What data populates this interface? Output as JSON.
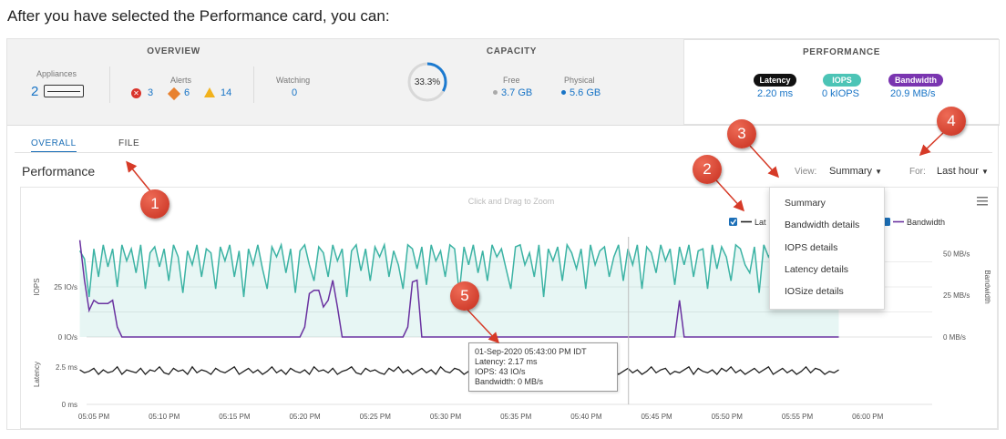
{
  "intro": "After you have selected the Performance card, you can:",
  "overview": {
    "title": "OVERVIEW",
    "appliances_label": "Appliances",
    "appliances_count": "2",
    "alerts_label": "Alerts",
    "alerts_critical": "3",
    "alerts_major": "6",
    "alerts_minor": "14",
    "watching_label": "Watching",
    "watching_count": "0"
  },
  "capacity": {
    "title": "CAPACITY",
    "percent": "33.3%",
    "percent_value": 0.333,
    "free_label": "Free",
    "free_value": "3.7 GB",
    "physical_label": "Physical",
    "physical_value": "5.6 GB"
  },
  "performance_card": {
    "title": "PERFORMANCE",
    "latency_label": "Latency",
    "latency_value": "2.20 ms",
    "iops_label": "IOPS",
    "iops_value": "0 kIOPS",
    "bandwidth_label": "Bandwidth",
    "bandwidth_value": "20.9 MB/s"
  },
  "tabs": [
    "OVERALL",
    "FILE"
  ],
  "page_title": "Performance",
  "view_label": "View:",
  "view_value": "Summary",
  "for_label": "For:",
  "for_value": "Last hour",
  "view_menu": [
    "Summary",
    "Bandwidth details",
    "IOPS details",
    "Latency details",
    "IOSize details"
  ],
  "chart_hint": "Click and Drag to Zoom",
  "legend": {
    "latency": "Lat",
    "bandwidth": "Bandwidth"
  },
  "tooltip": {
    "time": "01-Sep-2020 05:43:00 PM IDT",
    "latency": "Latency: 2.17 ms",
    "iops": "IOPS: 43 IO/s",
    "bandwidth": "Bandwidth: 0 MB/s"
  },
  "callouts": [
    "1",
    "2",
    "3",
    "4",
    "5"
  ],
  "colors": {
    "iops": "#3cb3a4",
    "bandwidth": "#6a32a0",
    "latency": "#222222",
    "accent": "#1c6fb7",
    "callout": "#d63a27"
  },
  "chart_data": {
    "type": "line",
    "x_ticks": [
      "05:05 PM",
      "05:10 PM",
      "05:15 PM",
      "05:20 PM",
      "05:25 PM",
      "05:30 PM",
      "05:35 PM",
      "05:40 PM",
      "05:45 PM",
      "05:50 PM",
      "05:55 PM",
      "06:00 PM"
    ],
    "iops_axis": {
      "label": "IOPS",
      "ticks": [
        "25 IO/s",
        "0 IO/s"
      ],
      "ylim": [
        0,
        50
      ]
    },
    "bandwidth_axis": {
      "label": "Bandwidth",
      "ticks": [
        "50 MB/s",
        "25 MB/s",
        "0 MB/s"
      ],
      "ylim": [
        0,
        60
      ]
    },
    "latency_axis": {
      "label": "Latency",
      "ticks": [
        "2.5 ms",
        "0 ms"
      ],
      "ylim": [
        0,
        4
      ]
    },
    "x_start_minute": 64,
    "x_step_minutes": 0.333,
    "series": [
      {
        "name": "IOPS",
        "values": [
          43,
          39,
          20,
          44,
          30,
          46,
          35,
          44,
          25,
          46,
          38,
          44,
          32,
          46,
          24,
          42,
          45,
          35,
          44,
          28,
          46,
          40,
          22,
          43,
          36,
          46,
          30,
          44,
          42,
          24,
          45,
          38,
          46,
          30,
          43,
          20,
          44,
          36,
          46,
          34,
          24,
          45,
          40,
          46,
          32,
          44,
          22,
          43,
          46,
          36,
          28,
          45,
          42,
          30,
          46,
          38,
          44,
          20,
          43,
          46,
          33,
          44,
          28,
          45,
          40,
          46,
          30,
          43,
          36,
          24,
          46,
          44,
          34,
          45,
          26,
          46,
          38,
          43,
          30,
          46,
          44,
          22,
          45,
          36,
          46,
          32,
          43,
          28,
          46,
          40,
          44,
          34,
          24,
          45,
          46,
          36,
          42,
          30,
          46,
          20,
          44,
          38,
          45,
          28,
          46,
          42,
          34,
          44,
          24,
          46,
          36,
          43,
          45,
          30,
          40,
          46,
          28,
          44,
          36,
          46,
          24,
          45,
          42,
          32,
          46,
          38,
          44,
          26,
          45,
          36,
          46,
          30,
          43,
          44,
          24,
          46,
          34,
          45,
          40,
          28,
          46,
          44,
          36,
          32,
          45,
          22,
          46,
          40,
          44,
          30,
          45,
          38,
          46,
          26,
          43,
          44,
          34,
          46,
          30,
          45,
          42,
          40,
          44
        ]
      },
      {
        "name": "Bandwidth",
        "values": [
          58,
          34,
          16,
          22,
          20,
          20,
          20,
          22,
          6,
          0,
          0,
          0,
          0,
          0,
          0,
          0,
          0,
          0,
          0,
          0,
          0,
          0,
          0,
          0,
          0,
          0,
          0,
          0,
          0,
          0,
          0,
          0,
          0,
          0,
          0,
          0,
          0,
          0,
          0,
          0,
          0,
          0,
          0,
          0,
          0,
          0,
          0,
          0,
          6,
          26,
          28,
          28,
          18,
          22,
          34,
          18,
          0,
          0,
          0,
          0,
          0,
          0,
          0,
          0,
          0,
          0,
          0,
          0,
          0,
          0,
          6,
          33,
          34,
          0,
          0,
          0,
          0,
          0,
          0,
          0,
          0,
          0,
          0,
          0,
          0,
          0,
          0,
          0,
          0,
          0,
          0,
          0,
          0,
          0,
          0,
          0,
          0,
          0,
          0,
          0,
          0,
          0,
          0,
          0,
          0,
          0,
          0,
          0,
          0,
          0,
          0,
          0,
          0,
          0,
          0,
          0,
          0,
          0,
          0,
          0,
          0,
          0,
          0,
          0,
          0,
          0,
          0,
          0,
          22,
          0,
          0,
          0,
          0,
          0,
          0,
          0,
          0,
          0,
          0,
          0,
          0,
          0,
          0,
          0,
          0,
          0,
          0,
          0,
          0,
          0,
          0,
          0,
          0,
          0,
          0,
          0,
          0,
          0,
          0,
          0,
          0,
          0,
          0,
          0,
          0,
          0,
          22,
          25,
          24
        ]
      },
      {
        "name": "Latency",
        "values": [
          2.3,
          2.1,
          2.2,
          2.4,
          2.0,
          2.3,
          2.1,
          2.2,
          2.5,
          2.0,
          2.3,
          2.2,
          2.1,
          2.4,
          2.0,
          2.3,
          2.2,
          2.5,
          2.1,
          2.0,
          2.4,
          2.2,
          2.3,
          2.0,
          2.5,
          2.1,
          2.3,
          2.2,
          2.0,
          2.4,
          2.2,
          2.1,
          2.3,
          2.5,
          2.0,
          2.2,
          2.4,
          2.1,
          2.3,
          2.0,
          2.2,
          2.5,
          2.1,
          2.3,
          2.0,
          2.4,
          2.2,
          2.1,
          2.3,
          2.0,
          2.5,
          2.2,
          2.3,
          2.1,
          2.4,
          2.0,
          2.2,
          2.3,
          2.5,
          2.1,
          2.0,
          2.4,
          2.2,
          2.3,
          2.1,
          2.0,
          2.4,
          2.2,
          2.5,
          2.1,
          2.3,
          2.0,
          2.2,
          2.4,
          2.1,
          2.3,
          2.0,
          2.5,
          2.2,
          2.1,
          2.4,
          2.3,
          2.0,
          2.2,
          2.4,
          2.1,
          2.3,
          2.5,
          2.0,
          2.2,
          2.1,
          2.4,
          2.3,
          2.0,
          2.2,
          2.5,
          2.1,
          2.3,
          2.0,
          2.4,
          2.2,
          2.1,
          2.3,
          2.0,
          2.5,
          2.2,
          2.4,
          2.1,
          2.3,
          2.0,
          2.2,
          2.4,
          2.1,
          2.5,
          2.3,
          2.0,
          2.2,
          2.4,
          2.1,
          2.3,
          2.0,
          2.2,
          2.5,
          2.1,
          2.3,
          2.4,
          2.0,
          2.2,
          2.1,
          2.3,
          2.5,
          2.0,
          2.4,
          2.2,
          2.1,
          2.3,
          2.0,
          2.4,
          2.2,
          2.5,
          2.1,
          2.3,
          2.0,
          2.2,
          2.4,
          2.1,
          2.3,
          2.5,
          2.0,
          2.2,
          2.4,
          2.1,
          2.3,
          2.0,
          2.2,
          2.5,
          2.1,
          2.4,
          2.3,
          2.0,
          2.2,
          2.1,
          2.3
        ]
      }
    ],
    "crosshair_time": "05:43 PM"
  }
}
